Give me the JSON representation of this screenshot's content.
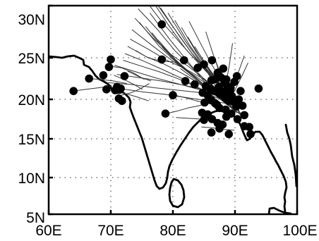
{
  "chart_data": {
    "type": "scatter",
    "title": "",
    "xlabel": "",
    "ylabel": "",
    "xlim": [
      60,
      100
    ],
    "ylim": [
      5,
      30
    ],
    "x_ticks": [
      {
        "value": 60,
        "label": "60E"
      },
      {
        "value": 70,
        "label": "70E"
      },
      {
        "value": 80,
        "label": "80E"
      },
      {
        "value": 90,
        "label": "90E"
      },
      {
        "value": 100,
        "label": "100E"
      }
    ],
    "y_ticks": [
      {
        "value": 5,
        "label": "5N"
      },
      {
        "value": 10,
        "label": "10N"
      },
      {
        "value": 15,
        "label": "15N"
      },
      {
        "value": 20,
        "label": "20N"
      },
      {
        "value": 25,
        "label": "25N"
      },
      {
        "value": 30,
        "label": "30N"
      }
    ],
    "grid": "dotted",
    "colors": {
      "marker": "#000000",
      "track": "#333333",
      "coast": "#000000"
    },
    "points_lon_lat": [
      [
        64.0,
        21.0
      ],
      [
        66.5,
        22.5
      ],
      [
        68.8,
        22.9
      ],
      [
        69.7,
        23.9
      ],
      [
        70.0,
        24.8
      ],
      [
        69.3,
        21.2
      ],
      [
        70.7,
        21.1
      ],
      [
        71.0,
        21.5
      ],
      [
        71.6,
        21.3
      ],
      [
        72.2,
        22.8
      ],
      [
        71.3,
        20.1
      ],
      [
        71.8,
        19.8
      ],
      [
        78.2,
        28.2
      ],
      [
        78.2,
        24.8
      ],
      [
        78.8,
        18.2
      ],
      [
        80.0,
        20.5
      ],
      [
        81.8,
        24.7
      ],
      [
        82.0,
        22.2
      ],
      [
        83.5,
        21.8
      ],
      [
        84.0,
        23.8
      ],
      [
        85.0,
        24.2
      ],
      [
        85.3,
        21.6
      ],
      [
        86.2,
        22.3
      ],
      [
        86.3,
        24.7
      ],
      [
        86.8,
        22.4
      ],
      [
        87.4,
        22.9
      ],
      [
        87.8,
        22.6
      ],
      [
        88.3,
        22.0
      ],
      [
        88.6,
        22.4
      ],
      [
        88.8,
        21.6
      ],
      [
        89.2,
        21.0
      ],
      [
        89.5,
        20.4
      ],
      [
        89.8,
        19.7
      ],
      [
        90.2,
        19.1
      ],
      [
        90.6,
        20.0
      ],
      [
        90.9,
        21.0
      ],
      [
        91.2,
        19.2
      ],
      [
        91.5,
        18.0
      ],
      [
        90.4,
        17.5
      ],
      [
        89.4,
        18.2
      ],
      [
        88.5,
        18.7
      ],
      [
        87.5,
        18.9
      ],
      [
        86.8,
        19.5
      ],
      [
        86.2,
        19.9
      ],
      [
        85.6,
        20.5
      ],
      [
        85.1,
        19.6
      ],
      [
        84.7,
        18.3
      ],
      [
        85.6,
        18.1
      ],
      [
        86.3,
        17.5
      ],
      [
        87.2,
        17.0
      ],
      [
        88.0,
        16.8
      ],
      [
        86.2,
        15.8
      ],
      [
        87.5,
        16.3
      ],
      [
        89.0,
        15.6
      ],
      [
        91.5,
        16.6
      ],
      [
        92.3,
        16.5
      ],
      [
        92.5,
        15.6
      ],
      [
        93.8,
        21.3
      ],
      [
        87.2,
        23.2
      ],
      [
        88.1,
        23.7
      ],
      [
        86.7,
        21.0
      ],
      [
        87.6,
        20.6
      ],
      [
        88.4,
        20.2
      ],
      [
        87.1,
        19.3
      ],
      [
        88.9,
        19.8
      ],
      [
        89.3,
        21.4
      ],
      [
        89.9,
        22.1
      ],
      [
        87.4,
        21.5
      ],
      [
        88.2,
        20.9
      ],
      [
        89.0,
        20.5
      ],
      [
        86.0,
        21.3
      ],
      [
        84.8,
        20.8
      ],
      [
        85.0,
        17.4
      ],
      [
        90.3,
        22.8
      ],
      [
        88.6,
        17.8
      ]
    ],
    "tracks_lon_lat": [
      [
        [
          75.2,
          30.8
        ],
        [
          78.3,
          28.4
        ],
        [
          81.5,
          26.2
        ],
        [
          84.6,
          24.0
        ],
        [
          87.0,
          22.1
        ]
      ],
      [
        [
          74.4,
          29.7
        ],
        [
          77.4,
          27.8
        ],
        [
          80.3,
          25.7
        ],
        [
          83.1,
          23.8
        ],
        [
          85.7,
          21.6
        ],
        [
          87.5,
          20.3
        ]
      ],
      [
        [
          73.9,
          28.8
        ],
        [
          76.8,
          26.9
        ],
        [
          79.5,
          25.4
        ],
        [
          82.6,
          23.9
        ],
        [
          85.5,
          22.2
        ],
        [
          88.1,
          20.7
        ]
      ],
      [
        [
          73.4,
          27.7
        ],
        [
          76.6,
          26.2
        ],
        [
          79.8,
          24.7
        ],
        [
          83.0,
          23.1
        ],
        [
          86.3,
          21.4
        ],
        [
          88.4,
          19.6
        ]
      ],
      [
        [
          73.1,
          26.8
        ],
        [
          76.1,
          25.8
        ],
        [
          79.0,
          24.7
        ],
        [
          81.9,
          23.7
        ],
        [
          84.8,
          22.5
        ],
        [
          87.4,
          20.9
        ]
      ],
      [
        [
          72.7,
          26.1
        ],
        [
          75.7,
          25.1
        ],
        [
          78.7,
          24.2
        ],
        [
          81.8,
          23.0
        ],
        [
          84.9,
          21.6
        ],
        [
          87.8,
          19.9
        ]
      ],
      [
        [
          72.3,
          25.4
        ],
        [
          75.3,
          24.6
        ],
        [
          78.3,
          23.6
        ],
        [
          81.5,
          22.5
        ],
        [
          84.6,
          21.2
        ],
        [
          87.6,
          19.6
        ]
      ],
      [
        [
          72.0,
          24.7
        ],
        [
          74.9,
          24.0
        ],
        [
          77.9,
          23.3
        ],
        [
          81.1,
          22.4
        ],
        [
          84.4,
          21.3
        ],
        [
          87.2,
          20.1
        ]
      ],
      [
        [
          76.1,
          31.0
        ],
        [
          79.2,
          28.2
        ],
        [
          82.1,
          25.8
        ],
        [
          85.3,
          23.4
        ],
        [
          88.1,
          21.3
        ]
      ],
      [
        [
          77.0,
          30.5
        ],
        [
          80.1,
          27.9
        ],
        [
          83.1,
          25.4
        ],
        [
          86.0,
          23.0
        ],
        [
          88.6,
          20.7
        ]
      ],
      [
        [
          78.0,
          29.8
        ],
        [
          81.0,
          27.1
        ],
        [
          83.8,
          24.8
        ],
        [
          86.7,
          22.5
        ],
        [
          89.1,
          20.4
        ]
      ],
      [
        [
          79.2,
          29.3
        ],
        [
          82.0,
          26.6
        ],
        [
          84.7,
          24.2
        ],
        [
          87.4,
          21.9
        ],
        [
          89.6,
          19.8
        ]
      ],
      [
        [
          80.3,
          28.6
        ],
        [
          82.8,
          26.1
        ],
        [
          85.4,
          23.7
        ],
        [
          88.0,
          21.3
        ],
        [
          90.0,
          19.4
        ]
      ],
      [
        [
          81.4,
          27.9
        ],
        [
          83.7,
          25.6
        ],
        [
          86.1,
          23.2
        ],
        [
          88.5,
          20.9
        ],
        [
          90.4,
          18.9
        ]
      ],
      [
        [
          82.4,
          27.0
        ],
        [
          84.5,
          24.9
        ],
        [
          86.7,
          22.7
        ],
        [
          88.9,
          20.5
        ],
        [
          90.7,
          18.5
        ]
      ],
      [
        [
          83.5,
          26.1
        ],
        [
          85.3,
          24.2
        ],
        [
          87.3,
          22.2
        ],
        [
          89.3,
          20.1
        ],
        [
          91.0,
          18.1
        ]
      ],
      [
        [
          84.4,
          25.2
        ],
        [
          86.0,
          23.5
        ],
        [
          87.8,
          21.7
        ],
        [
          89.6,
          19.7
        ],
        [
          91.2,
          17.6
        ]
      ],
      [
        [
          70.6,
          24.1
        ],
        [
          74.1,
          23.3
        ],
        [
          77.6,
          22.5
        ],
        [
          81.2,
          21.8
        ],
        [
          84.6,
          21.1
        ],
        [
          87.9,
          20.3
        ]
      ],
      [
        [
          71.0,
          23.0
        ],
        [
          74.6,
          22.6
        ],
        [
          78.2,
          22.2
        ],
        [
          81.8,
          21.7
        ],
        [
          85.3,
          21.1
        ],
        [
          88.2,
          20.5
        ]
      ],
      [
        [
          69.5,
          22.0
        ],
        [
          73.2,
          21.8
        ],
        [
          77.0,
          21.4
        ],
        [
          80.8,
          21.1
        ],
        [
          84.6,
          20.8
        ],
        [
          88.0,
          20.4
        ]
      ],
      [
        [
          71.5,
          21.3
        ],
        [
          75.1,
          20.9
        ],
        [
          78.7,
          20.6
        ],
        [
          82.3,
          20.2
        ],
        [
          85.9,
          19.8
        ],
        [
          88.6,
          19.5
        ]
      ],
      [
        [
          74.6,
          28.4
        ],
        [
          77.8,
          26.1
        ],
        [
          80.9,
          24.2
        ],
        [
          83.9,
          22.4
        ],
        [
          86.8,
          20.8
        ],
        [
          89.2,
          19.4
        ]
      ],
      [
        [
          75.6,
          28.0
        ],
        [
          78.6,
          25.8
        ],
        [
          81.6,
          23.8
        ],
        [
          84.6,
          22.0
        ],
        [
          87.6,
          20.3
        ],
        [
          89.8,
          18.9
        ]
      ],
      [
        [
          76.6,
          27.4
        ],
        [
          79.5,
          25.3
        ],
        [
          82.4,
          23.3
        ],
        [
          85.3,
          21.5
        ],
        [
          88.2,
          19.9
        ],
        [
          90.3,
          18.6
        ]
      ],
      [
        [
          77.6,
          26.7
        ],
        [
          80.4,
          24.8
        ],
        [
          83.2,
          22.9
        ],
        [
          86.0,
          21.1
        ],
        [
          88.8,
          19.5
        ]
      ],
      [
        [
          78.6,
          25.9
        ],
        [
          81.3,
          24.1
        ],
        [
          84.0,
          22.4
        ],
        [
          86.7,
          20.7
        ],
        [
          89.3,
          19.1
        ]
      ],
      [
        [
          79.5,
          25.1
        ],
        [
          82.2,
          23.5
        ],
        [
          84.8,
          21.9
        ],
        [
          87.4,
          20.3
        ],
        [
          89.9,
          18.7
        ]
      ],
      [
        [
          80.3,
          24.5
        ],
        [
          82.9,
          23.0
        ],
        [
          85.4,
          21.5
        ],
        [
          87.9,
          19.9
        ],
        [
          90.3,
          18.3
        ]
      ],
      [
        [
          81.2,
          23.7
        ],
        [
          83.6,
          22.4
        ],
        [
          86.0,
          21.0
        ],
        [
          88.4,
          19.6
        ],
        [
          90.7,
          18.2
        ]
      ],
      [
        [
          82.1,
          22.9
        ],
        [
          84.4,
          21.8
        ],
        [
          86.6,
          20.6
        ],
        [
          88.8,
          19.3
        ],
        [
          91.0,
          18.0
        ]
      ],
      [
        [
          76.3,
          29.3
        ],
        [
          79.7,
          26.6
        ],
        [
          83.0,
          24.0
        ],
        [
          86.1,
          21.6
        ],
        [
          88.9,
          19.5
        ]
      ],
      [
        [
          82.6,
          28.5
        ],
        [
          84.6,
          26.2
        ],
        [
          86.4,
          24.0
        ],
        [
          88.1,
          21.9
        ],
        [
          89.6,
          19.9
        ]
      ],
      [
        [
          85.3,
          27.5
        ],
        [
          86.5,
          25.3
        ],
        [
          87.6,
          23.2
        ],
        [
          88.6,
          21.1
        ],
        [
          89.4,
          19.1
        ]
      ],
      [
        [
          89.6,
          26.4
        ],
        [
          89.1,
          24.2
        ],
        [
          88.6,
          22.1
        ],
        [
          88.2,
          20.1
        ]
      ],
      [
        [
          91.5,
          25.2
        ],
        [
          90.6,
          23.4
        ],
        [
          89.6,
          21.6
        ],
        [
          88.6,
          19.9
        ]
      ],
      [
        [
          92.1,
          24.4
        ],
        [
          91.1,
          22.8
        ],
        [
          90.1,
          21.3
        ],
        [
          89.0,
          19.8
        ]
      ],
      [
        [
          74.0,
          25.7
        ],
        [
          76.0,
          25.0
        ],
        [
          78.1,
          24.6
        ],
        [
          80.1,
          24.5
        ]
      ],
      [
        [
          72.7,
          23.4
        ],
        [
          74.6,
          22.7
        ],
        [
          76.5,
          22.2
        ]
      ],
      [
        [
          66.3,
          22.5
        ],
        [
          68.4,
          22.4
        ],
        [
          70.5,
          22.2
        ],
        [
          72.6,
          21.9
        ]
      ],
      [
        [
          63.9,
          21.0
        ],
        [
          66.0,
          21.2
        ],
        [
          68.1,
          21.4
        ],
        [
          70.2,
          21.6
        ]
      ],
      [
        [
          69.7,
          24.0
        ],
        [
          71.7,
          23.8
        ],
        [
          73.6,
          23.2
        ],
        [
          75.4,
          22.4
        ]
      ],
      [
        [
          70.5,
          22.9
        ],
        [
          72.1,
          22.4
        ],
        [
          73.7,
          21.8
        ],
        [
          75.1,
          21.2
        ]
      ],
      [
        [
          70.3,
          21.0
        ],
        [
          72.3,
          20.7
        ],
        [
          74.2,
          20.3
        ],
        [
          76.1,
          19.8
        ]
      ],
      [
        [
          71.7,
          20.5
        ],
        [
          73.3,
          20.8
        ],
        [
          74.8,
          21.3
        ],
        [
          76.2,
          21.9
        ]
      ],
      [
        [
          78.9,
          18.2
        ],
        [
          80.6,
          18.5
        ],
        [
          82.4,
          18.9
        ],
        [
          84.2,
          19.2
        ],
        [
          86.0,
          19.6
        ]
      ],
      [
        [
          80.2,
          20.5
        ],
        [
          82.0,
          20.2
        ],
        [
          83.8,
          19.8
        ],
        [
          85.6,
          19.5
        ],
        [
          87.3,
          19.2
        ]
      ],
      [
        [
          80.5,
          17.7
        ],
        [
          82.5,
          17.6
        ],
        [
          84.5,
          17.5
        ],
        [
          86.5,
          17.4
        ]
      ],
      [
        [
          84.6,
          16.5
        ],
        [
          86.3,
          16.4
        ],
        [
          88.1,
          16.2
        ],
        [
          89.9,
          16.1
        ]
      ],
      [
        [
          86.8,
          24.8
        ],
        [
          87.4,
          23.4
        ],
        [
          87.9,
          22.0
        ],
        [
          88.4,
          20.6
        ]
      ],
      [
        [
          84.5,
          24.4
        ],
        [
          85.6,
          23.2
        ],
        [
          86.6,
          21.9
        ],
        [
          87.5,
          20.7
        ]
      ]
    ]
  }
}
